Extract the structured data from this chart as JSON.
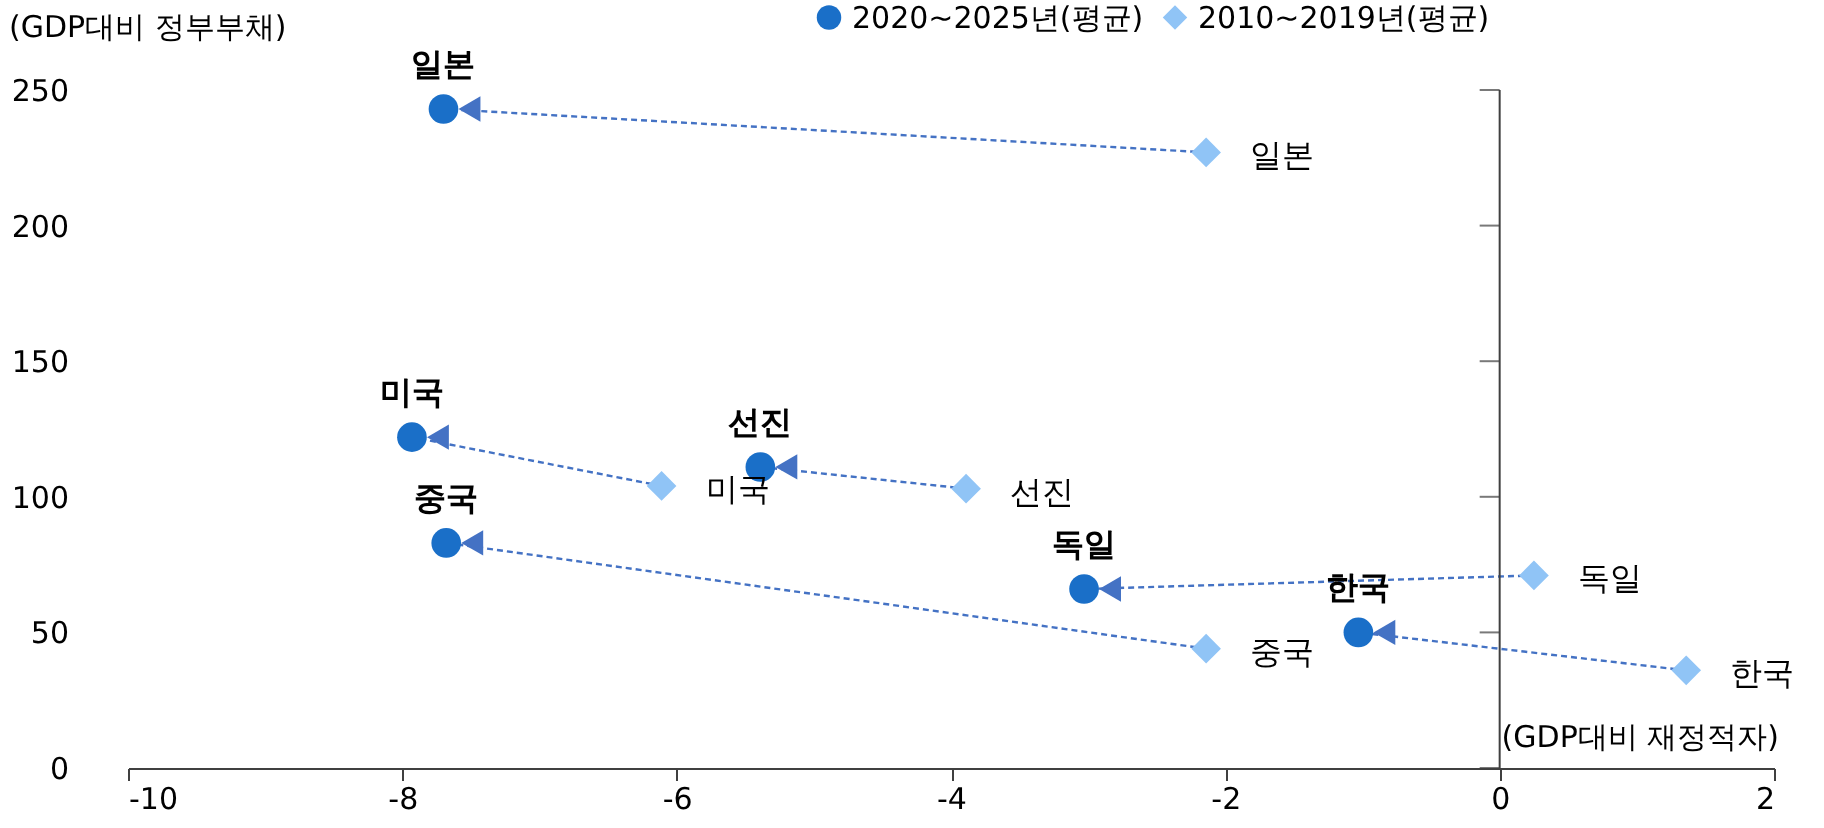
{
  "chart_data": {
    "type": "scatter",
    "ylabel": "(GDP대비 정부부채)",
    "xlabel": "(GDP대비 재정적자)",
    "xlim": [
      -10,
      2
    ],
    "xticks": [
      -10,
      -8,
      -6,
      -4,
      -2,
      0,
      2
    ],
    "ylim": [
      0,
      250
    ],
    "yticks": [
      0,
      50,
      100,
      150,
      200,
      250
    ],
    "grid": false,
    "legend": "top right",
    "ref_lines": [
      {
        "axis": "x",
        "value": 0,
        "label": null,
        "color": "#404040"
      }
    ],
    "series": [
      {
        "name": "2020~2025년(평균)",
        "color": "#1a6fc8",
        "marker": "circle",
        "x": [
          -7.7,
          -7.93,
          -5.39,
          -7.68,
          -3.03,
          -1.03
        ],
        "values": [
          243,
          122,
          111,
          83,
          66,
          50
        ]
      },
      {
        "name": "2010~2019년(평균)",
        "color": "#90c4f6",
        "marker": "diamond",
        "x": [
          -2.14,
          -6.11,
          -3.89,
          -2.14,
          0.25,
          1.36
        ],
        "values": [
          227,
          104,
          103,
          44,
          71,
          36
        ]
      }
    ],
    "annotations": [
      {
        "text": "일본",
        "x": -7.7,
        "y": 243
      },
      {
        "text": "미국",
        "x": -7.93,
        "y": 122
      },
      {
        "text": "선진",
        "x": -5.39,
        "y": 111
      },
      {
        "text": "중국",
        "x": -7.68,
        "y": 83
      },
      {
        "text": "독일",
        "x": -3.03,
        "y": 66
      },
      {
        "text": "한국",
        "x": -1.03,
        "y": 50
      },
      {
        "text": "일본",
        "x": -2.14,
        "y": 227
      },
      {
        "text": "미국",
        "x": -6.11,
        "y": 104
      },
      {
        "text": "선진",
        "x": -3.89,
        "y": 103
      },
      {
        "text": "중국",
        "x": -2.14,
        "y": 44
      },
      {
        "text": "독일",
        "x": 0.25,
        "y": 71
      },
      {
        "text": "한국",
        "x": 1.36,
        "y": 36
      }
    ]
  }
}
